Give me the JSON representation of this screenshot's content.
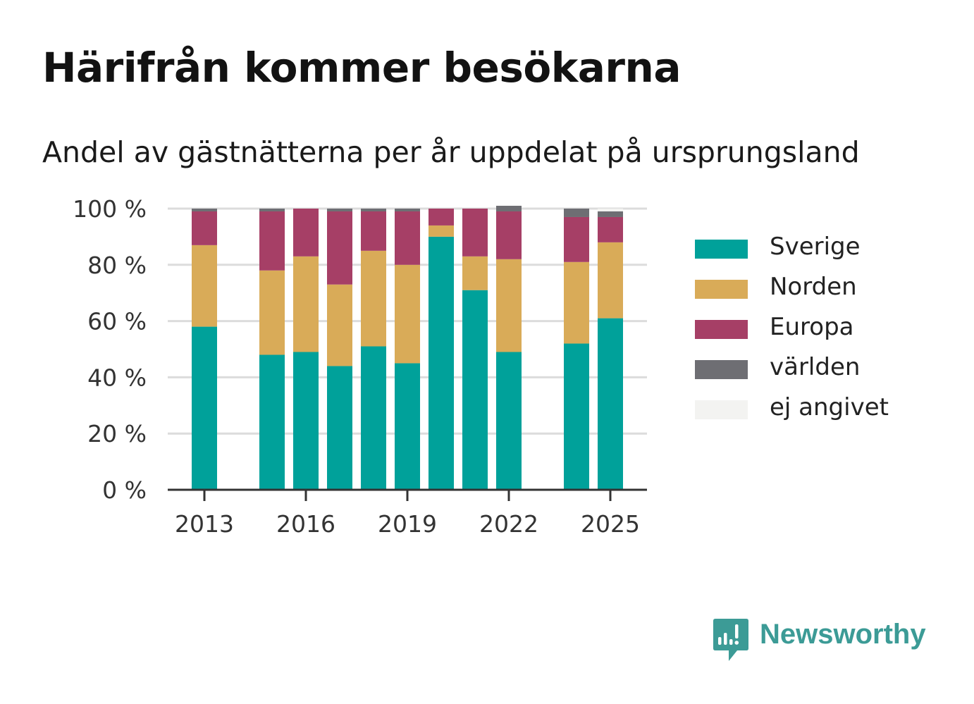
{
  "chart_data": {
    "type": "bar",
    "stacked": true,
    "title": "Härifrån kommer besökarna",
    "subtitle": "Andel av gästnätterna per år uppdelat på ursprungsland",
    "years": [
      2013,
      2014,
      2015,
      2016,
      2017,
      2018,
      2019,
      2020,
      2021,
      2022,
      2023,
      2024,
      2025
    ],
    "x_tick_labels": [
      "2013",
      "2016",
      "2019",
      "2022",
      "2025"
    ],
    "y_tick_labels": [
      "0 %",
      "20 %",
      "40 %",
      "60 %",
      "80 %",
      "100 %"
    ],
    "ylim": [
      0,
      100
    ],
    "grid": true,
    "legend_position": "right",
    "series": [
      {
        "name": "Sverige",
        "color": "#00a19a",
        "values": [
          58,
          null,
          48,
          49,
          44,
          51,
          45,
          90,
          71,
          49,
          null,
          52,
          61
        ]
      },
      {
        "name": "Norden",
        "color": "#d9ab58",
        "values": [
          29,
          null,
          30,
          34,
          29,
          34,
          35,
          4,
          12,
          33,
          null,
          29,
          27
        ]
      },
      {
        "name": "Europa",
        "color": "#a63f66",
        "values": [
          12,
          null,
          21,
          17,
          26,
          14,
          19,
          6,
          17,
          17,
          null,
          16,
          9
        ]
      },
      {
        "name": "världen",
        "color": "#6e6e73",
        "values": [
          1,
          null,
          1,
          0,
          1,
          1,
          1,
          0,
          0,
          2,
          null,
          3,
          2
        ]
      },
      {
        "name": "ej angivet",
        "color": "#f3f3f1",
        "values": [
          0,
          null,
          0,
          0,
          0,
          0,
          0,
          0,
          0,
          0,
          null,
          0,
          1
        ]
      }
    ]
  },
  "logo": {
    "text": "Newsworthy",
    "color": "#3c9b96"
  }
}
